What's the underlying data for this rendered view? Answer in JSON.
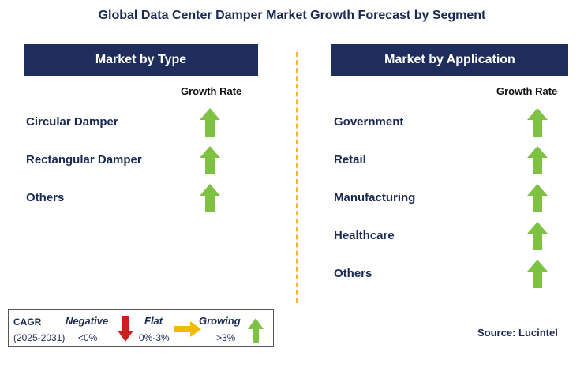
{
  "title": "Global Data Center Damper Market Growth Forecast by Segment",
  "left_panel": {
    "header": "Market by Type",
    "growth_label": "Growth Rate",
    "rows": [
      {
        "label": "Circular Damper",
        "trend": "growing"
      },
      {
        "label": "Rectangular Damper",
        "trend": "growing"
      },
      {
        "label": "Others",
        "trend": "growing"
      }
    ]
  },
  "right_panel": {
    "header": "Market by Application",
    "growth_label": "Growth Rate",
    "rows": [
      {
        "label": "Government",
        "trend": "growing"
      },
      {
        "label": "Retail",
        "trend": "growing"
      },
      {
        "label": "Manufacturing",
        "trend": "growing"
      },
      {
        "label": "Healthcare",
        "trend": "growing"
      },
      {
        "label": "Others",
        "trend": "growing"
      }
    ]
  },
  "legend": {
    "cagr_label": "CAGR",
    "period": "(2025-2031)",
    "negative": {
      "label": "Negative",
      "range": "<0%",
      "icon": "down-arrow-icon",
      "color": "#cc1f1f"
    },
    "flat": {
      "label": "Flat",
      "range": "0%-3%",
      "icon": "right-arrow-icon",
      "color": "#f5b800"
    },
    "growing": {
      "label": "Growing",
      "range": ">3%",
      "icon": "up-arrow-icon",
      "color": "#7dc242"
    }
  },
  "source": "Source: Lucintel",
  "colors": {
    "header_bg": "#1f2d5c",
    "text": "#1b2a52",
    "divider": "#f2b632",
    "growing_arrow": "#7dc242"
  }
}
